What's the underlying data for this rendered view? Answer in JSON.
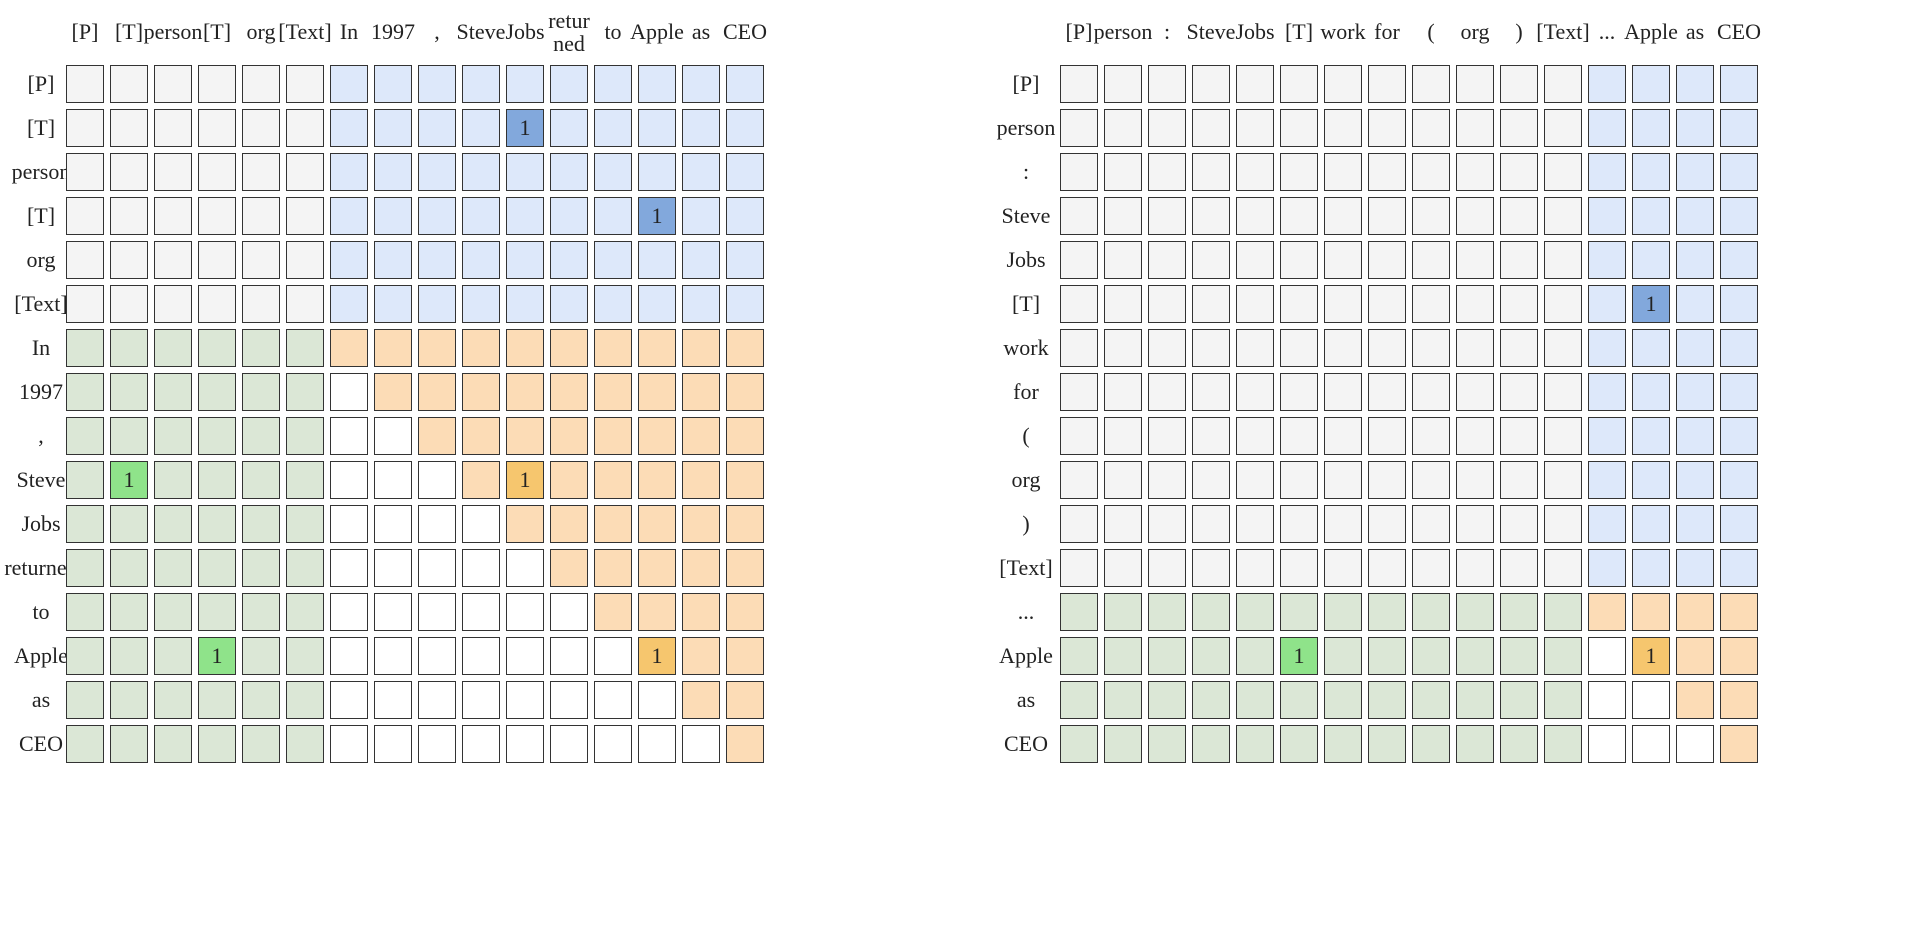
{
  "colors": {
    "gray": "#f4f4f4",
    "blue_light": "#dde8fa",
    "green_light": "#dbe7d6",
    "orange_light": "#fcdcb6",
    "white": "#ffffff",
    "blue_mark": "#82a8dc",
    "green_mark": "#8fe38a",
    "orange_mark": "#f6c66e"
  },
  "left": {
    "col_labels": [
      "[P]",
      "[T]",
      "person",
      "[T]",
      "org",
      "[Text]",
      "In",
      "1997",
      ",",
      "Steve",
      "Jobs",
      "retur\nned",
      "to",
      "Apple",
      "as",
      "CEO"
    ],
    "row_labels": [
      "[P]",
      "[T]",
      "person",
      "[T]",
      "org",
      "[Text]",
      "In",
      "1997",
      ",",
      "Steve",
      "Jobs",
      "returned",
      "to",
      "Apple",
      "as",
      "CEO"
    ],
    "cell_legend": "g=gray b=light-blue n=light-green o=light-orange w=white B=blue-mark N=green-mark O=orange-mark",
    "grid": [
      "ggggggbbbbbbbbbb",
      "ggggggbbbbBbbbbb",
      "ggggggbbbbbbbbbb",
      "ggggggbbbbbbbBbb",
      "ggggggbbbbbbbbbb",
      "ggggggbbbbbbbbbb",
      "nnnnnnoooooooooo",
      "nnnnnnwooooooooo",
      "nnnnnnwwoooooooo",
      "nNnnnnwwwoOooooo",
      "nnnnnnwwwwoooooo",
      "nnnnnnwwwwwooooo",
      "nnnnnnwwwwwwoooo",
      "nnnNnnwwwwwwwOoo",
      "nnnnnnwwwwwwwwoo",
      "nnnnnnwwwwwwwwwo"
    ],
    "marks": [
      {
        "row": 1,
        "col": 10,
        "text": "1"
      },
      {
        "row": 3,
        "col": 13,
        "text": "1"
      },
      {
        "row": 9,
        "col": 1,
        "text": "1"
      },
      {
        "row": 9,
        "col": 10,
        "text": "1"
      },
      {
        "row": 13,
        "col": 3,
        "text": "1"
      },
      {
        "row": 13,
        "col": 13,
        "text": "1"
      }
    ]
  },
  "right": {
    "col_labels": [
      "[P]",
      "person",
      ":",
      "Steve",
      "Jobs",
      "[T]",
      "work",
      "for",
      "(",
      "org",
      ")",
      "[Text]",
      "...",
      "Apple",
      "as",
      "CEO"
    ],
    "row_labels": [
      "[P]",
      "person",
      ":",
      "Steve",
      "Jobs",
      "[T]",
      "work",
      "for",
      "(",
      "org",
      ")",
      "[Text]",
      "...",
      "Apple",
      "as",
      "CEO"
    ],
    "cell_legend": "g=gray b=light-blue n=light-green o=light-orange w=white B=blue-mark N=green-mark O=orange-mark",
    "grid": [
      "ggggggggggggbbbb",
      "ggggggggggggbbbb",
      "ggggggggggggbbbb",
      "ggggggggggggbbbb",
      "ggggggggggggbbbb",
      "ggggggggggggbBbb",
      "ggggggggggggbbbb",
      "ggggggggggggbbbb",
      "ggggggggggggbbbb",
      "ggggggggggggbbbb",
      "ggggggggggggbbbb",
      "ggggggggggggbbbb",
      "nnnnnnnnnnnnoooo",
      "nnnnnNnnnnnnwOoo",
      "nnnnnnnnnnnnwwoo",
      "nnnnnnnnnnnnwwwo"
    ],
    "marks": [
      {
        "row": 5,
        "col": 13,
        "text": "1"
      },
      {
        "row": 13,
        "col": 5,
        "text": "1"
      },
      {
        "row": 13,
        "col": 13,
        "text": "1"
      }
    ]
  }
}
